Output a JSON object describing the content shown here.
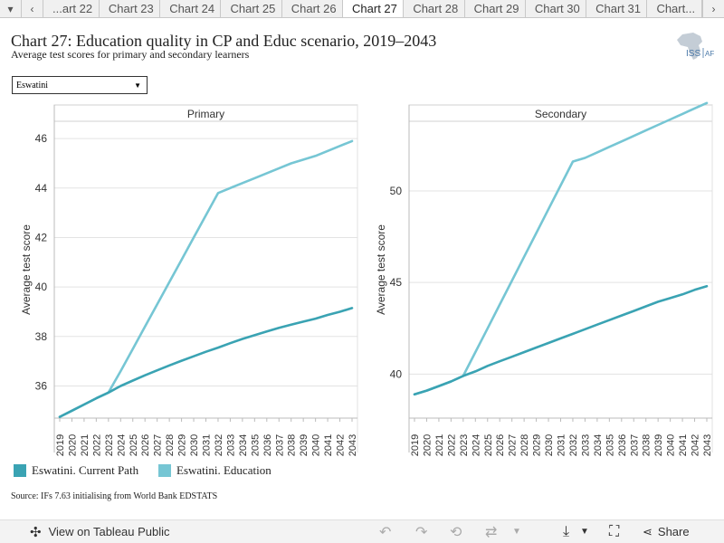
{
  "tabs": {
    "items": [
      "...art 22",
      "Chart 23",
      "Chart 24",
      "Chart 25",
      "Chart 26",
      "Chart 27",
      "Chart 28",
      "Chart 29",
      "Chart 30",
      "Chart 31",
      "Chart..."
    ],
    "active": "Chart 27"
  },
  "header": {
    "title": "Chart 27: Education quality in CP and Educ scenario, 2019–2043",
    "subtitle": "Average test scores for primary and secondary learners",
    "logo_text_left": "ISS",
    "logo_text_right": "AF"
  },
  "filter": {
    "selected": "Eswatini"
  },
  "chart_data": [
    {
      "type": "line",
      "title": "Primary",
      "ylabel": "Average test score",
      "ylim": [
        34.7,
        46.7
      ],
      "yticks": [
        36,
        38,
        40,
        42,
        44,
        46
      ],
      "x": [
        2019,
        2020,
        2021,
        2022,
        2023,
        2024,
        2025,
        2026,
        2027,
        2028,
        2029,
        2030,
        2031,
        2032,
        2033,
        2034,
        2035,
        2036,
        2037,
        2038,
        2039,
        2040,
        2041,
        2042,
        2043
      ],
      "series": [
        {
          "name": "Eswatini. Current Path",
          "color": "#3aa3b3",
          "values": [
            34.75,
            35.0,
            35.25,
            35.5,
            35.73,
            36.0,
            36.22,
            36.43,
            36.63,
            36.83,
            37.02,
            37.2,
            37.38,
            37.55,
            37.73,
            37.9,
            38.05,
            38.2,
            38.35,
            38.48,
            38.6,
            38.72,
            38.87,
            39.0,
            39.15
          ]
        },
        {
          "name": "Eswatini. Education",
          "color": "#76c6d4",
          "values": [
            34.75,
            35.0,
            35.25,
            35.5,
            35.73,
            36.6,
            37.5,
            38.4,
            39.3,
            40.2,
            41.1,
            42.0,
            42.9,
            43.8,
            44.0,
            44.2,
            44.4,
            44.6,
            44.8,
            45.0,
            45.15,
            45.3,
            45.5,
            45.7,
            45.9
          ]
        }
      ]
    },
    {
      "type": "line",
      "title": "Secondary",
      "ylabel": "Average test score",
      "ylim": [
        37.6,
        53.8
      ],
      "yticks": [
        40,
        45,
        50
      ],
      "x": [
        2019,
        2020,
        2021,
        2022,
        2023,
        2024,
        2025,
        2026,
        2027,
        2028,
        2029,
        2030,
        2031,
        2032,
        2033,
        2034,
        2035,
        2036,
        2037,
        2038,
        2039,
        2040,
        2041,
        2042,
        2043
      ],
      "series": [
        {
          "name": "Eswatini. Current Path",
          "color": "#3aa3b3",
          "values": [
            38.9,
            39.1,
            39.35,
            39.6,
            39.9,
            40.15,
            40.45,
            40.7,
            40.95,
            41.2,
            41.45,
            41.7,
            41.95,
            42.2,
            42.45,
            42.7,
            42.95,
            43.2,
            43.45,
            43.7,
            43.95,
            44.15,
            44.35,
            44.6,
            44.8
          ]
        },
        {
          "name": "Eswatini. Education",
          "color": "#76c6d4",
          "values": [
            38.9,
            39.1,
            39.35,
            39.6,
            39.9,
            41.2,
            42.5,
            43.8,
            45.1,
            46.4,
            47.7,
            49.0,
            50.3,
            51.6,
            51.8,
            52.1,
            52.4,
            52.7,
            53.0,
            53.3,
            53.6,
            53.9,
            54.2,
            54.5,
            54.8
          ]
        }
      ]
    }
  ],
  "legend": [
    {
      "label": "Eswatini. Current Path",
      "color": "#3aa3b3"
    },
    {
      "label": "Eswatini. Education",
      "color": "#76c6d4"
    }
  ],
  "source": "Source: IFs 7.63 initialising from World Bank EDSTATS",
  "footer": {
    "view_label": "View on Tableau Public",
    "share_label": "Share"
  }
}
